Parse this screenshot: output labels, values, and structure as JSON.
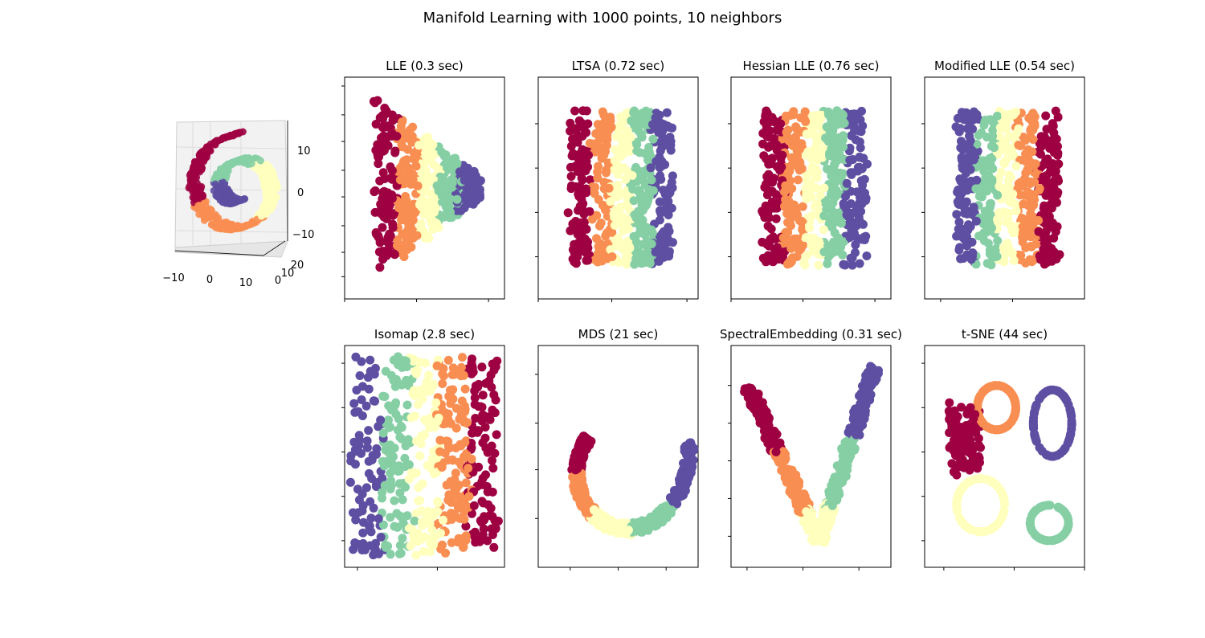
{
  "figure": {
    "title": "Manifold Learning with 1000 points, 10 neighbors"
  },
  "palette": [
    "#9e0142",
    "#f98e52",
    "#ffffbe",
    "#86cfa5",
    "#5e4fa2"
  ],
  "chart_data": [
    {
      "type": "scatter",
      "projection": "3d",
      "title": "",
      "dataset": "swiss roll",
      "x_ticks": [
        "−10",
        "0",
        "10"
      ],
      "y_ticks": [
        "0",
        "10",
        "20"
      ],
      "z_ticks": [
        "10",
        "0",
        "−10"
      ]
    },
    {
      "type": "scatter",
      "title": "LLE (0.3 sec)",
      "shape": "trapezoid",
      "ticks_labeled": false
    },
    {
      "type": "scatter",
      "title": "LTSA (0.72 sec)",
      "shape": "vertical-bands",
      "band_order": "left-to-right red-orange-yellow-green-purple",
      "ticks_labeled": false
    },
    {
      "type": "scatter",
      "title": "Hessian LLE (0.76 sec)",
      "shape": "vertical-bands",
      "band_order": "left-to-right red-orange-yellow-green-purple",
      "ticks_labeled": false
    },
    {
      "type": "scatter",
      "title": "Modified LLE (0.54 sec)",
      "shape": "vertical-bands",
      "band_order": "left-to-right purple-green-yellow-orange-red",
      "ticks_labeled": false
    },
    {
      "type": "scatter",
      "title": "Isomap (2.8 sec)",
      "shape": "vertical-bands",
      "band_order": "left-to-right purple-green-yellow-orange-red",
      "ticks_labeled": false
    },
    {
      "type": "scatter",
      "title": "MDS (21 sec)",
      "shape": "spiral",
      "ticks_labeled": false
    },
    {
      "type": "scatter",
      "title": "SpectralEmbedding (0.31 sec)",
      "shape": "v-shape",
      "ticks_labeled": false
    },
    {
      "type": "scatter",
      "title": "t-SNE (44 sec)",
      "shape": "clusters",
      "ticks_labeled": false
    }
  ]
}
